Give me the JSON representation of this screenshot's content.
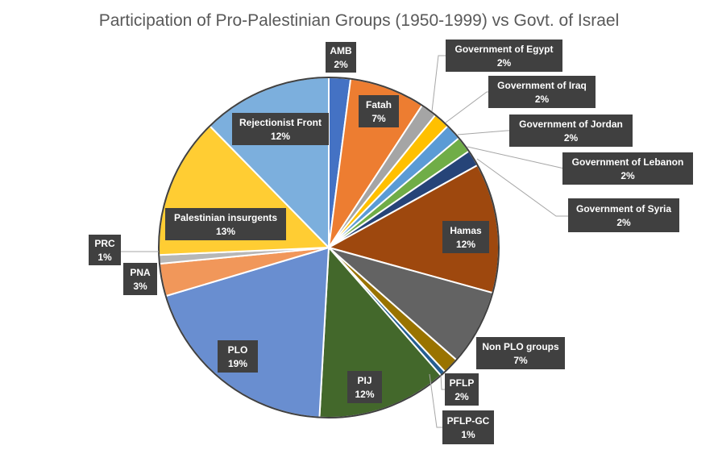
{
  "chart_data": {
    "type": "pie",
    "title": "Participation of Pro-Palestinian Groups (1950-1999) vs Govt. of Israel",
    "slices": [
      {
        "label": "AMB",
        "value": 2,
        "value_label": "2%",
        "color": "#4472C4"
      },
      {
        "label": "Fatah",
        "value": 7,
        "value_label": "7%",
        "color": "#ED7D31"
      },
      {
        "label": "Government of Egypt",
        "value": 1.5,
        "value_label": "2%",
        "color": "#A5A5A5"
      },
      {
        "label": "Government of Iraq",
        "value": 1.5,
        "value_label": "2%",
        "color": "#FFC000"
      },
      {
        "label": "Government of Jordan",
        "value": 1.5,
        "value_label": "2%",
        "color": "#5B9BD5"
      },
      {
        "label": "Government of Lebanon",
        "value": 1.5,
        "value_label": "2%",
        "color": "#70AD47"
      },
      {
        "label": "Government of Syria",
        "value": 1.5,
        "value_label": "2%",
        "color": "#264478"
      },
      {
        "label": "Hamas",
        "value": 12,
        "value_label": "12%",
        "color": "#9E480E"
      },
      {
        "label": "Non PLO groups",
        "value": 7,
        "value_label": "7%",
        "color": "#636363"
      },
      {
        "label": "PFLP",
        "value": 1.5,
        "value_label": "2%",
        "color": "#997300"
      },
      {
        "label": "PFLP-GC",
        "value": 0.5,
        "value_label": "1%",
        "color": "#255E91"
      },
      {
        "label": "PIJ",
        "value": 12,
        "value_label": "12%",
        "color": "#43682B"
      },
      {
        "label": "PLO",
        "value": 19,
        "value_label": "19%",
        "color": "#698ED0"
      },
      {
        "label": "PNA",
        "value": 3,
        "value_label": "3%",
        "color": "#F1975A"
      },
      {
        "label": "PRC",
        "value": 0.8,
        "value_label": "1%",
        "color": "#B7B7B7"
      },
      {
        "label": "Palestinian insurgents",
        "value": 13,
        "value_label": "13%",
        "color": "#FFCD33"
      },
      {
        "label": "Rejectionist Front",
        "value": 12,
        "value_label": "12%",
        "color": "#7CAFDD"
      }
    ]
  }
}
